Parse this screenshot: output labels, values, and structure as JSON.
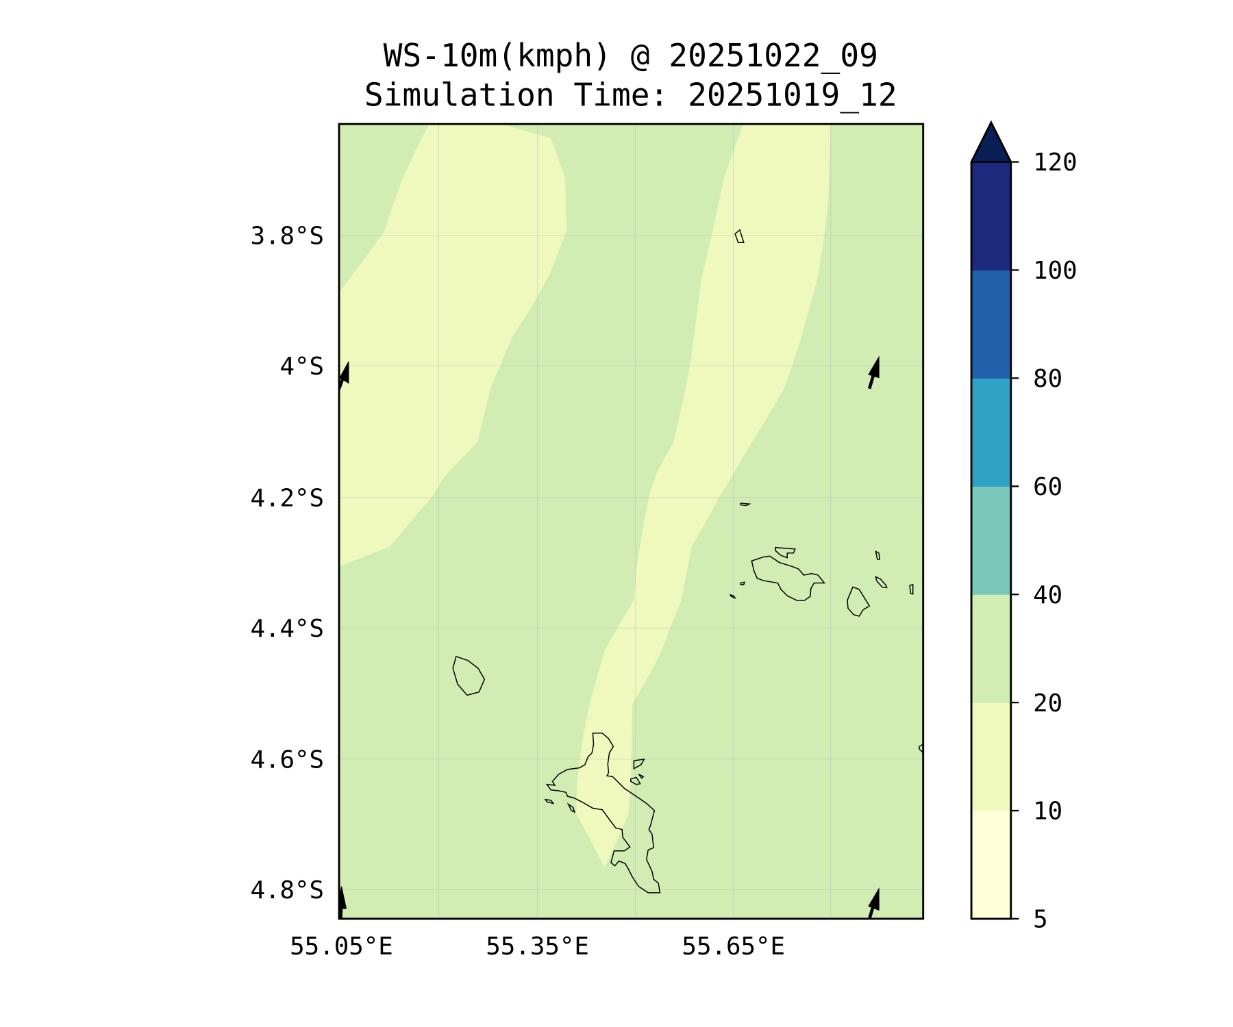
{
  "chart_data": {
    "type": "heatmap",
    "title": "WS-10m(kmph) @ 20251022_09",
    "subtitle": "Simulation Time: 20251019_12",
    "xlabel": "",
    "ylabel": "",
    "x_ticks": [
      "55.05°E",
      "55.35°E",
      "55.65°E"
    ],
    "y_ticks": [
      "3.8°S",
      "4°S",
      "4.2°S",
      "4.4°S",
      "4.6°S",
      "4.8°S"
    ],
    "grid": true,
    "colorbar": {
      "levels": [
        5,
        10,
        20,
        40,
        60,
        80,
        100,
        120
      ],
      "tick_labels": [
        "5",
        "10",
        "20",
        "40",
        "60",
        "80",
        "100",
        "120"
      ],
      "colors": [
        "#ffffd9",
        "#f0f9bd",
        "#d1edb3",
        "#7ac8b9",
        "#2ea3c3",
        "#2261a9",
        "#1c2a7c"
      ],
      "extend_color": "#0a1f55",
      "extend": "max",
      "placement": "right"
    },
    "fields": [
      {
        "range": "10-20",
        "color": "#f0f9bd",
        "description_region": "two bands"
      },
      {
        "range": "20-40",
        "color": "#d1edb3",
        "description_region": "background"
      }
    ]
  }
}
